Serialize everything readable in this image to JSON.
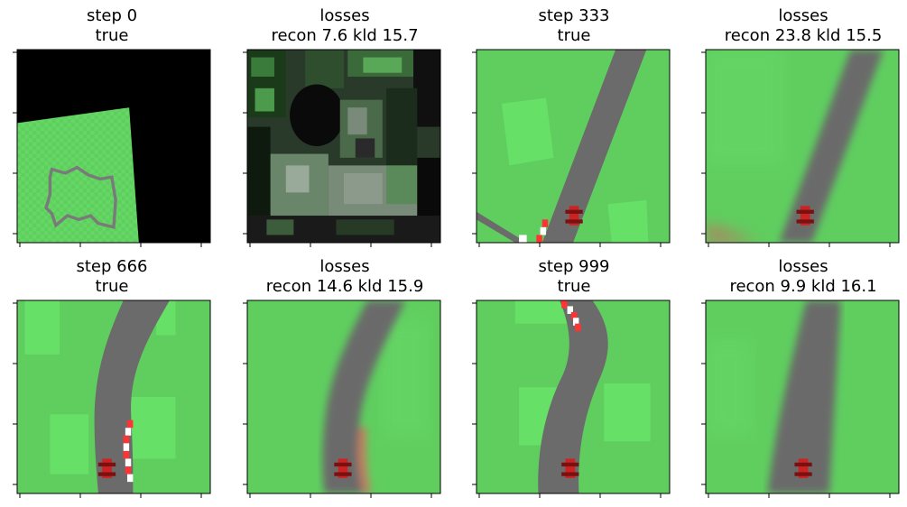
{
  "chart_data": {
    "type": "image-grid",
    "grid": {
      "rows": 2,
      "cols": 4
    },
    "ticks": {
      "x_count": 4,
      "y_count": 4,
      "tick_labels_shown": false
    },
    "panels": [
      {
        "title_line1": "step 0",
        "title_line2": "true",
        "scene": "zoomed-out",
        "has_car": false
      },
      {
        "title_line1": "losses",
        "title_line2": "recon 7.6 kld 15.7",
        "scene": "noisy-reconstruction",
        "has_car": true
      },
      {
        "title_line1": "step 333",
        "title_line2": "true",
        "scene": "road-diagonal",
        "has_car": true
      },
      {
        "title_line1": "losses",
        "title_line2": "recon 23.8 kld 15.5",
        "scene": "road-diagonal-blurred",
        "has_car": true
      },
      {
        "title_line1": "step 666",
        "title_line2": "true",
        "scene": "road-curve",
        "has_car": true
      },
      {
        "title_line1": "losses",
        "title_line2": "recon 14.6 kld 15.9",
        "scene": "road-curve-blurred",
        "has_car": true
      },
      {
        "title_line1": "step 999",
        "title_line2": "true",
        "scene": "road-s-curve",
        "has_car": true
      },
      {
        "title_line1": "losses",
        "title_line2": "recon 9.9 kld 16.1",
        "scene": "road-straight-blurred",
        "has_car": true
      }
    ],
    "colors": {
      "grass": "#5fce5f",
      "grass_light": "#66e066",
      "road": "#6b6b6b",
      "car": "#cc2222",
      "curb_red": "#ff3333",
      "curb_white": "#ffffff",
      "background_black": "#000000"
    }
  }
}
